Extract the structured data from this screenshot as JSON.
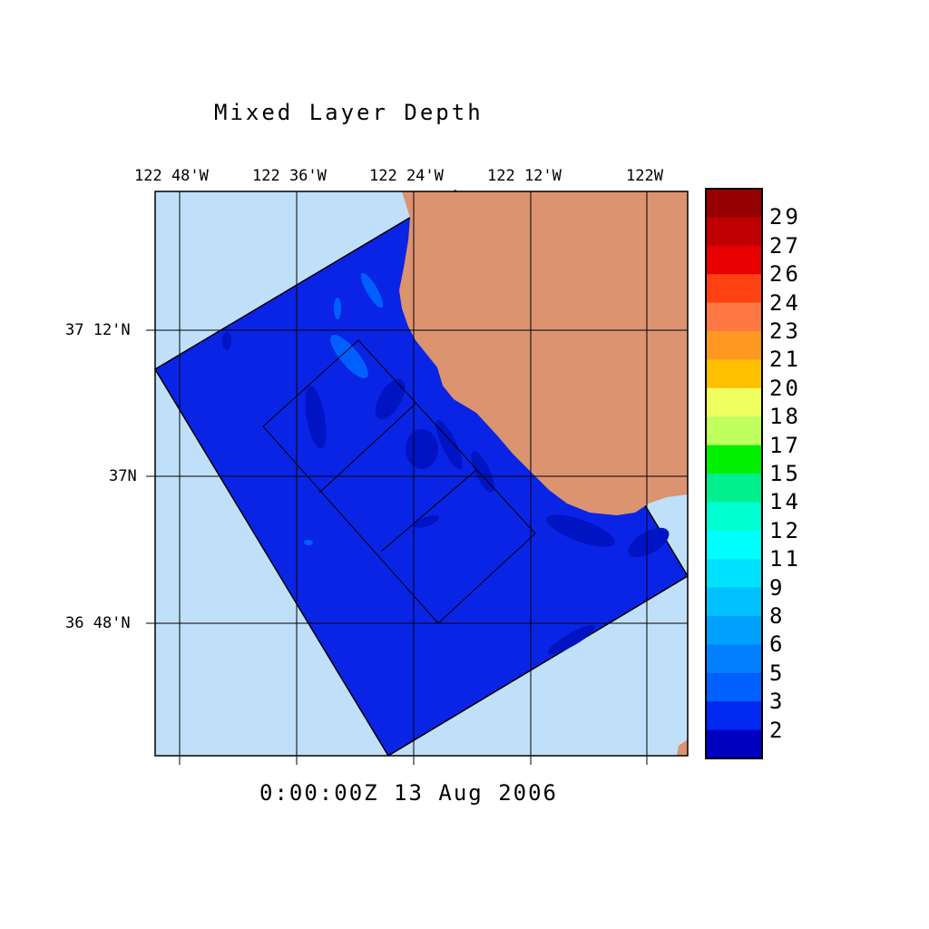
{
  "title": "Mixed Layer Depth",
  "timestamp": "0:00:00Z  13 Aug 2006",
  "lon_labels": [
    "122 48'W",
    "122 36'W",
    "122 24'W",
    "122 12'W",
    "122W"
  ],
  "lat_labels": [
    "37 12'N",
    "37N",
    "36 48'N"
  ],
  "colorbar": {
    "labels": [
      "29",
      "27",
      "26",
      "24",
      "23",
      "21",
      "20",
      "18",
      "17",
      "15",
      "14",
      "12",
      "11",
      "9",
      "8",
      "6",
      "5",
      "3",
      "2"
    ],
    "colors": [
      "#960000",
      "#c00000",
      "#e60000",
      "#ff4010",
      "#ff7844",
      "#ff9820",
      "#ffc000",
      "#f0ff60",
      "#c0ff60",
      "#00f000",
      "#00f090",
      "#00ffd0",
      "#00ffff",
      "#00e0ff",
      "#00c0ff",
      "#00a0ff",
      "#0080ff",
      "#0060ff",
      "#0028f0",
      "#0000c0"
    ]
  },
  "colors": {
    "ocean_outside": "#c0e0fa",
    "land": "#db9370",
    "field_main": "#0a24e6",
    "field_deep": "#0014c4",
    "field_shallow": "#0060ff"
  }
}
